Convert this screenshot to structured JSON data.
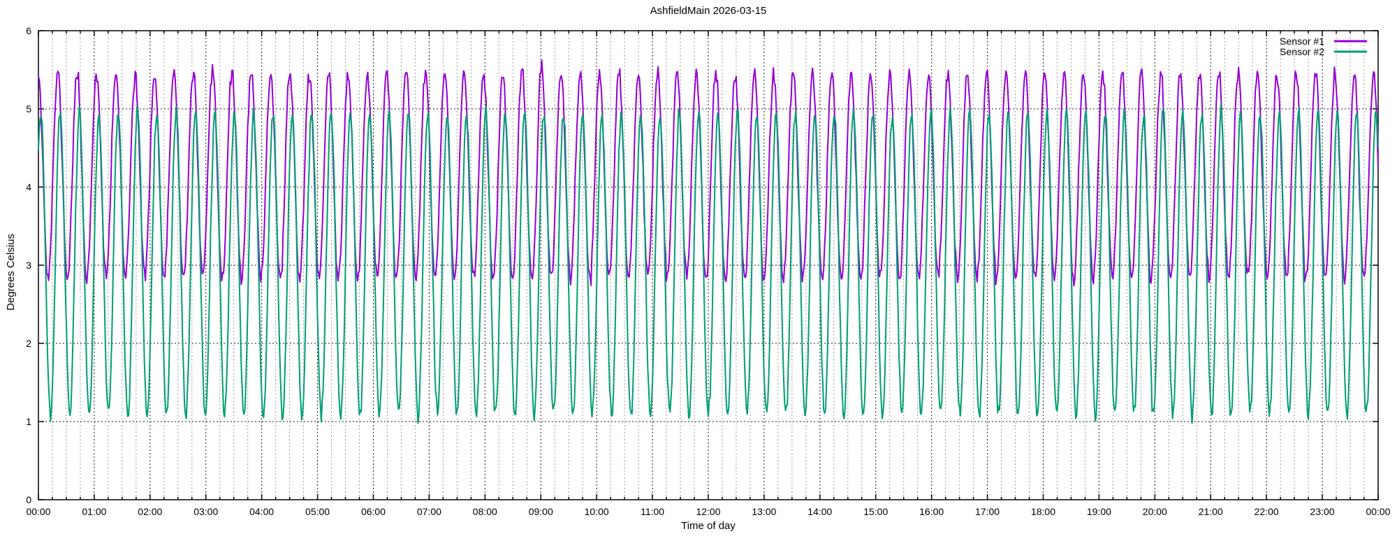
{
  "chart_data": {
    "type": "line",
    "title": "AshfieldMain 2026-03-15",
    "xlabel": "Time of day",
    "ylabel": "Degrees Celsius",
    "ylim": [
      0,
      6
    ],
    "y_tick_labels": [
      "0",
      "1",
      "2",
      "3",
      "4",
      "5",
      "6"
    ],
    "x_range_minutes": [
      0,
      1440
    ],
    "x_major_tick_minutes": 60,
    "x_minor_tick_minutes": 15,
    "x_tick_labels": [
      "00:00",
      "01:00",
      "02:00",
      "03:00",
      "04:00",
      "05:00",
      "06:00",
      "07:00",
      "08:00",
      "09:00",
      "10:00",
      "11:00",
      "12:00",
      "13:00",
      "14:00",
      "15:00",
      "16:00",
      "17:00",
      "18:00",
      "19:00",
      "20:00",
      "21:00",
      "22:00",
      "23:00",
      "00:00"
    ],
    "grid": {
      "style": "dotted",
      "major_color": "#1a1a1a",
      "minor_color": "#9a9a9a",
      "horizontal_lines_at": [
        1,
        2,
        3,
        4,
        5
      ]
    },
    "legend": {
      "position": "top-right-inside"
    },
    "sample_step_minutes": 1,
    "series": [
      {
        "name": "Sensor #1",
        "color": "#9400d3",
        "mean": 4.15,
        "amplitude": 1.32,
        "period_minutes": 20.8,
        "phase_lag_minutes": 0,
        "noise_sd": 0.05,
        "seed": 11,
        "approx_peak": 5.5,
        "approx_trough": 2.8
      },
      {
        "name": "Sensor #2",
        "color": "#009e73",
        "mean": 3.02,
        "amplitude": 1.93,
        "period_minutes": 20.8,
        "phase_lag_minutes": 2.5,
        "noise_sd": 0.05,
        "seed": 29,
        "approx_peak": 4.95,
        "approx_trough": 1.05
      }
    ]
  }
}
